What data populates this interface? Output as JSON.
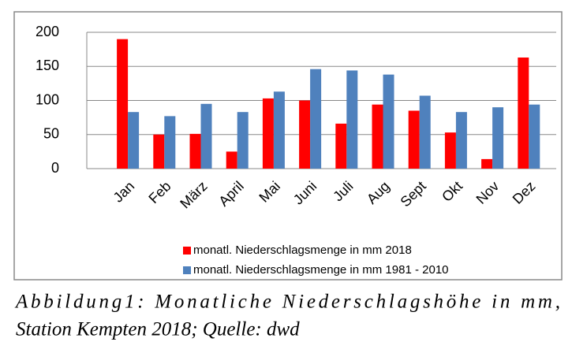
{
  "chart_data": {
    "type": "bar",
    "categories": [
      "Jan",
      "Feb",
      "März",
      "April",
      "Mai",
      "Juni",
      "Juli",
      "Aug",
      "Sept",
      "Okt",
      "Nov",
      "Dez"
    ],
    "series": [
      {
        "name": "monatl. Niederschlagsmenge in mm 2018",
        "color": "#ff0000",
        "values": [
          190,
          50,
          51,
          25,
          103,
          100,
          66,
          94,
          85,
          53,
          14,
          163
        ]
      },
      {
        "name": "monatl. Niederschlagsmenge in mm 1981 - 2010",
        "color": "#4f81bd",
        "values": [
          83,
          77,
          95,
          83,
          113,
          146,
          144,
          138,
          107,
          83,
          90,
          94
        ]
      }
    ],
    "ylim": [
      0,
      200
    ],
    "yticks": [
      0,
      50,
      100,
      150,
      200
    ],
    "grid": true,
    "legend": "bottom"
  },
  "caption": [
    "Abbildung1: Monatliche Niederschlagshöhe in mm,",
    "Station Kempten 2018; Quelle: dwd"
  ]
}
